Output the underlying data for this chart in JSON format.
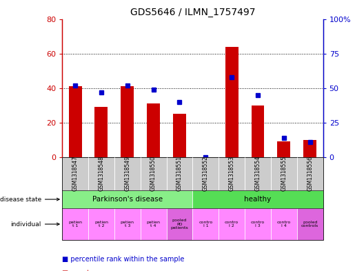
{
  "title": "GDS5646 / ILMN_1757497",
  "samples": [
    "GSM1318547",
    "GSM1318548",
    "GSM1318549",
    "GSM1318550",
    "GSM1318551",
    "GSM1318552",
    "GSM1318553",
    "GSM1318554",
    "GSM1318555",
    "GSM1318556"
  ],
  "counts": [
    41,
    29,
    41,
    31,
    25,
    0,
    64,
    30,
    9,
    10
  ],
  "percentile_ranks": [
    52,
    47,
    52,
    49,
    40,
    0,
    58,
    45,
    14,
    11
  ],
  "left_ylim": [
    0,
    80
  ],
  "right_ylim": [
    0,
    100
  ],
  "left_yticks": [
    0,
    20,
    40,
    60,
    80
  ],
  "right_yticks": [
    0,
    25,
    50,
    75,
    100
  ],
  "right_yticklabels": [
    "0",
    "25",
    "50",
    "75",
    "100%"
  ],
  "bar_color": "#cc0000",
  "dot_color": "#0000cc",
  "bg_color": "#cccccc",
  "pk_disease_color": "#88ee88",
  "healthy_color": "#55dd55",
  "indiv_regular_color": "#ff88ff",
  "indiv_pooled_color": "#dd66dd",
  "legend_count_color": "#cc0000",
  "legend_pct_color": "#0000cc",
  "indiv_labels": [
    "patien\nt 1",
    "patien\nt 2",
    "patien\nt 3",
    "patien\nt 4",
    "pooled\nPD\npatients",
    "contro\nl 1",
    "contro\nl 2",
    "contro\nl 3",
    "contro\nl 4",
    "pooled\ncontrols"
  ],
  "indiv_pooled_indices": [
    4,
    9
  ]
}
